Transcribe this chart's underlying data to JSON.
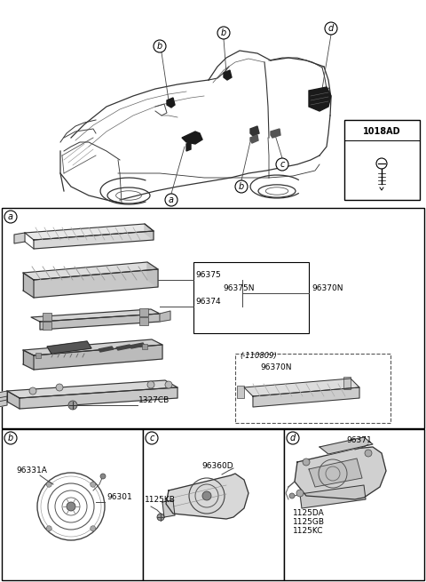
{
  "bg_color": "#ffffff",
  "border_color": "#000000",
  "text_color": "#000000",
  "line_color": "#444444",
  "fig_width": 4.8,
  "fig_height": 6.55,
  "dpi": 100,
  "fastener_label": "1018AD",
  "sec_a_parts": [
    "96375",
    "96374",
    "1327CB",
    "96375N",
    "96370N"
  ],
  "sec_dashed_parts": [
    "(-110809)",
    "96370N"
  ],
  "sec_b_parts": [
    "96331A",
    "96301"
  ],
  "sec_c_parts": [
    "96360D",
    "1125KB"
  ],
  "sec_d_parts": [
    "96371",
    "1125DA",
    "1125GB",
    "1125KC"
  ]
}
